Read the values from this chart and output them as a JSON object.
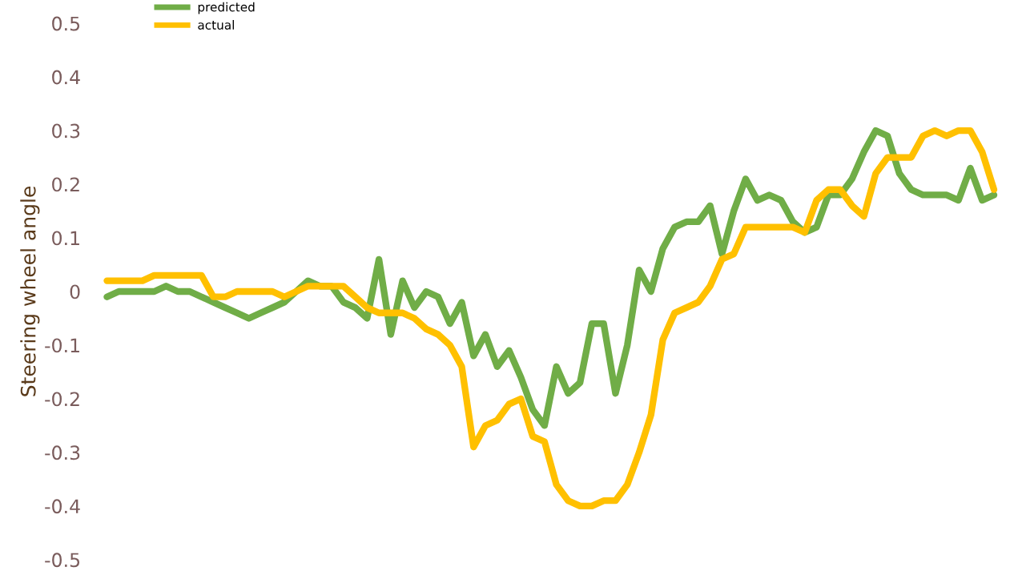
{
  "chart_data": {
    "type": "line",
    "ylabel": "Steering wheel angle",
    "categories": [
      null,
      null,
      null,
      null,
      null,
      null,
      null,
      null,
      null,
      null,
      null,
      null,
      null,
      null,
      null,
      null,
      null,
      null,
      null,
      null,
      null,
      null,
      null,
      null,
      null,
      null,
      null,
      null,
      null,
      null,
      null,
      null,
      null,
      null,
      null,
      null,
      null,
      null,
      null,
      null,
      null,
      null,
      null,
      null,
      null,
      null,
      null,
      null,
      null,
      null,
      null,
      null,
      null,
      null,
      null,
      null,
      null,
      null,
      null,
      null,
      null,
      null,
      null,
      null,
      null,
      null,
      null,
      null,
      null,
      null,
      null,
      null,
      null,
      null,
      null,
      null
    ],
    "series": [
      {
        "name": "predicted",
        "color": "#70ad47",
        "values": [
          -0.01,
          0,
          0,
          0,
          0,
          0.01,
          0,
          0,
          -0.01,
          -0.02,
          -0.03,
          -0.04,
          -0.05,
          -0.04,
          -0.03,
          -0.02,
          0,
          0.02,
          0.01,
          0.01,
          -0.02,
          -0.03,
          -0.05,
          0.06,
          -0.08,
          0.02,
          -0.03,
          0,
          -0.01,
          -0.06,
          -0.02,
          -0.12,
          -0.08,
          -0.14,
          -0.11,
          -0.16,
          -0.22,
          -0.25,
          -0.14,
          -0.19,
          -0.17,
          -0.06,
          -0.06,
          -0.19,
          -0.1,
          0.04,
          0,
          0.08,
          0.12,
          0.13,
          0.13,
          0.16,
          0.07,
          0.15,
          0.21,
          0.17,
          0.18,
          0.17,
          0.13,
          0.11,
          0.12,
          0.18,
          0.18,
          0.21,
          0.26,
          0.3,
          0.29,
          0.22,
          0.19,
          0.18,
          0.18,
          0.18,
          0.17,
          0.23,
          0.17,
          0.18
        ]
      },
      {
        "name": "actual",
        "color": "#ffc000",
        "values": [
          0.02,
          0.02,
          0.02,
          0.02,
          0.03,
          0.03,
          0.03,
          0.03,
          0.03,
          -0.01,
          -0.01,
          0,
          0,
          0,
          0,
          -0.01,
          0,
          0.01,
          0.01,
          0.01,
          0.01,
          -0.01,
          -0.03,
          -0.04,
          -0.04,
          -0.04,
          -0.05,
          -0.07,
          -0.08,
          -0.1,
          -0.14,
          -0.29,
          -0.25,
          -0.24,
          -0.21,
          -0.2,
          -0.27,
          -0.28,
          -0.36,
          -0.39,
          -0.4,
          -0.4,
          -0.39,
          -0.39,
          -0.36,
          -0.3,
          -0.23,
          -0.09,
          -0.04,
          -0.03,
          -0.02,
          0.01,
          0.06,
          0.07,
          0.12,
          0.12,
          0.12,
          0.12,
          0.12,
          0.11,
          0.17,
          0.19,
          0.19,
          0.16,
          0.14,
          0.22,
          0.25,
          0.25,
          0.25,
          0.29,
          0.3,
          0.29,
          0.3,
          0.3,
          0.26,
          0.19
        ]
      }
    ],
    "ylim": [
      -0.5,
      0.5
    ],
    "yticks": [
      -0.5,
      -0.4,
      -0.3,
      -0.2,
      -0.1,
      0,
      0.1,
      0.2,
      0.3,
      0.4,
      0.5
    ],
    "tick_labels": "y",
    "grid": false,
    "legend": "top left",
    "marker": "none",
    "line_style": "solid"
  }
}
